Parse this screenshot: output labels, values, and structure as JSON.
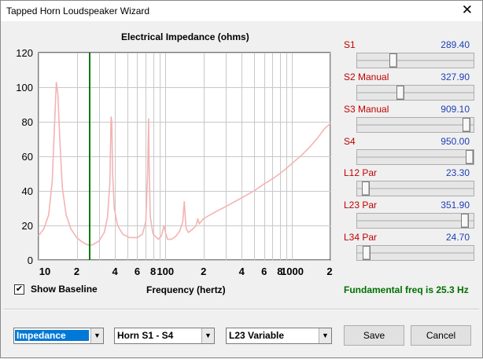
{
  "window": {
    "title": "Tapped Horn Loudspeaker Wizard",
    "close_glyph": "✕"
  },
  "chart_data": {
    "type": "line",
    "title": "Electrical Impedance (ohms)",
    "xlabel": "Frequency (hertz)",
    "ylabel": "",
    "x_scale": "log",
    "xlim": [
      10,
      2000
    ],
    "ylim": [
      0,
      120
    ],
    "y_ticks": [
      "0",
      "20",
      "40",
      "60",
      "80",
      "100",
      "120"
    ],
    "x_tick_labels": [
      "10",
      "2",
      "4",
      "6",
      "8",
      "100",
      "2",
      "4",
      "6",
      "8",
      "1000",
      "2"
    ],
    "grid": true,
    "marker_line_x": 25.3,
    "series": [
      {
        "x": [
          10,
          11,
          12,
          12.8,
          13.4,
          13.8,
          14.2,
          14.7,
          15.4,
          16.5,
          18,
          20,
          22,
          24,
          25.3,
          27,
          30,
          33,
          35,
          36.5,
          37.3,
          37.8,
          38.4,
          39.5,
          42,
          46,
          52,
          60,
          66,
          70,
          72.5,
          73.7,
          74.5,
          76,
          80,
          88,
          93,
          96,
          98,
          100,
          104,
          112,
          122,
          130,
          137,
          141,
          143,
          146,
          152,
          165,
          175,
          180,
          185,
          200,
          250,
          300,
          400,
          500,
          600,
          700,
          800,
          900,
          1000,
          1200,
          1400,
          1600,
          1800,
          2000
        ],
        "y": [
          14,
          18,
          26,
          45,
          80,
          103,
          96,
          70,
          42,
          26,
          18,
          13,
          10.5,
          9,
          8.5,
          9,
          11,
          16,
          25,
          45,
          83,
          80,
          50,
          30,
          20,
          15,
          13,
          13,
          15,
          22,
          50,
          82,
          55,
          25,
          15,
          12,
          14,
          18,
          20,
          16,
          12,
          12,
          14,
          17,
          22,
          34,
          26,
          18,
          16,
          18,
          20,
          24,
          21,
          24,
          28,
          31,
          36,
          40,
          44,
          47,
          50,
          53,
          56,
          61,
          66,
          71,
          76,
          79
        ]
      }
    ],
    "colors": {
      "series": "#f4b3b3",
      "marker": "#007800",
      "grid": "#c8c8c8"
    }
  },
  "sliders": [
    {
      "label": "S1",
      "value": "289.40"
    },
    {
      "label": "S2  Manual",
      "value": "327.90"
    },
    {
      "label": "S3  Manual",
      "value": "909.10"
    },
    {
      "label": "S4",
      "value": "950.00"
    },
    {
      "label": "L12  Par",
      "value": "23.30"
    },
    {
      "label": "L23  Par",
      "value": "351.90"
    },
    {
      "label": "L34  Par",
      "value": "24.70"
    }
  ],
  "slider_levels": [
    0.3,
    0.36,
    0.97,
    1.0,
    0.04,
    0.96,
    0.05
  ],
  "show_baseline": {
    "label": "Show Baseline",
    "checked_glyph": "✔"
  },
  "fundamental": "Fundamental freq is 25.3 Hz",
  "combos": {
    "view": "Impedance",
    "horn": "Horn S1 - S4",
    "variable": "L23 Variable"
  },
  "buttons": {
    "save": "Save",
    "cancel": "Cancel"
  }
}
